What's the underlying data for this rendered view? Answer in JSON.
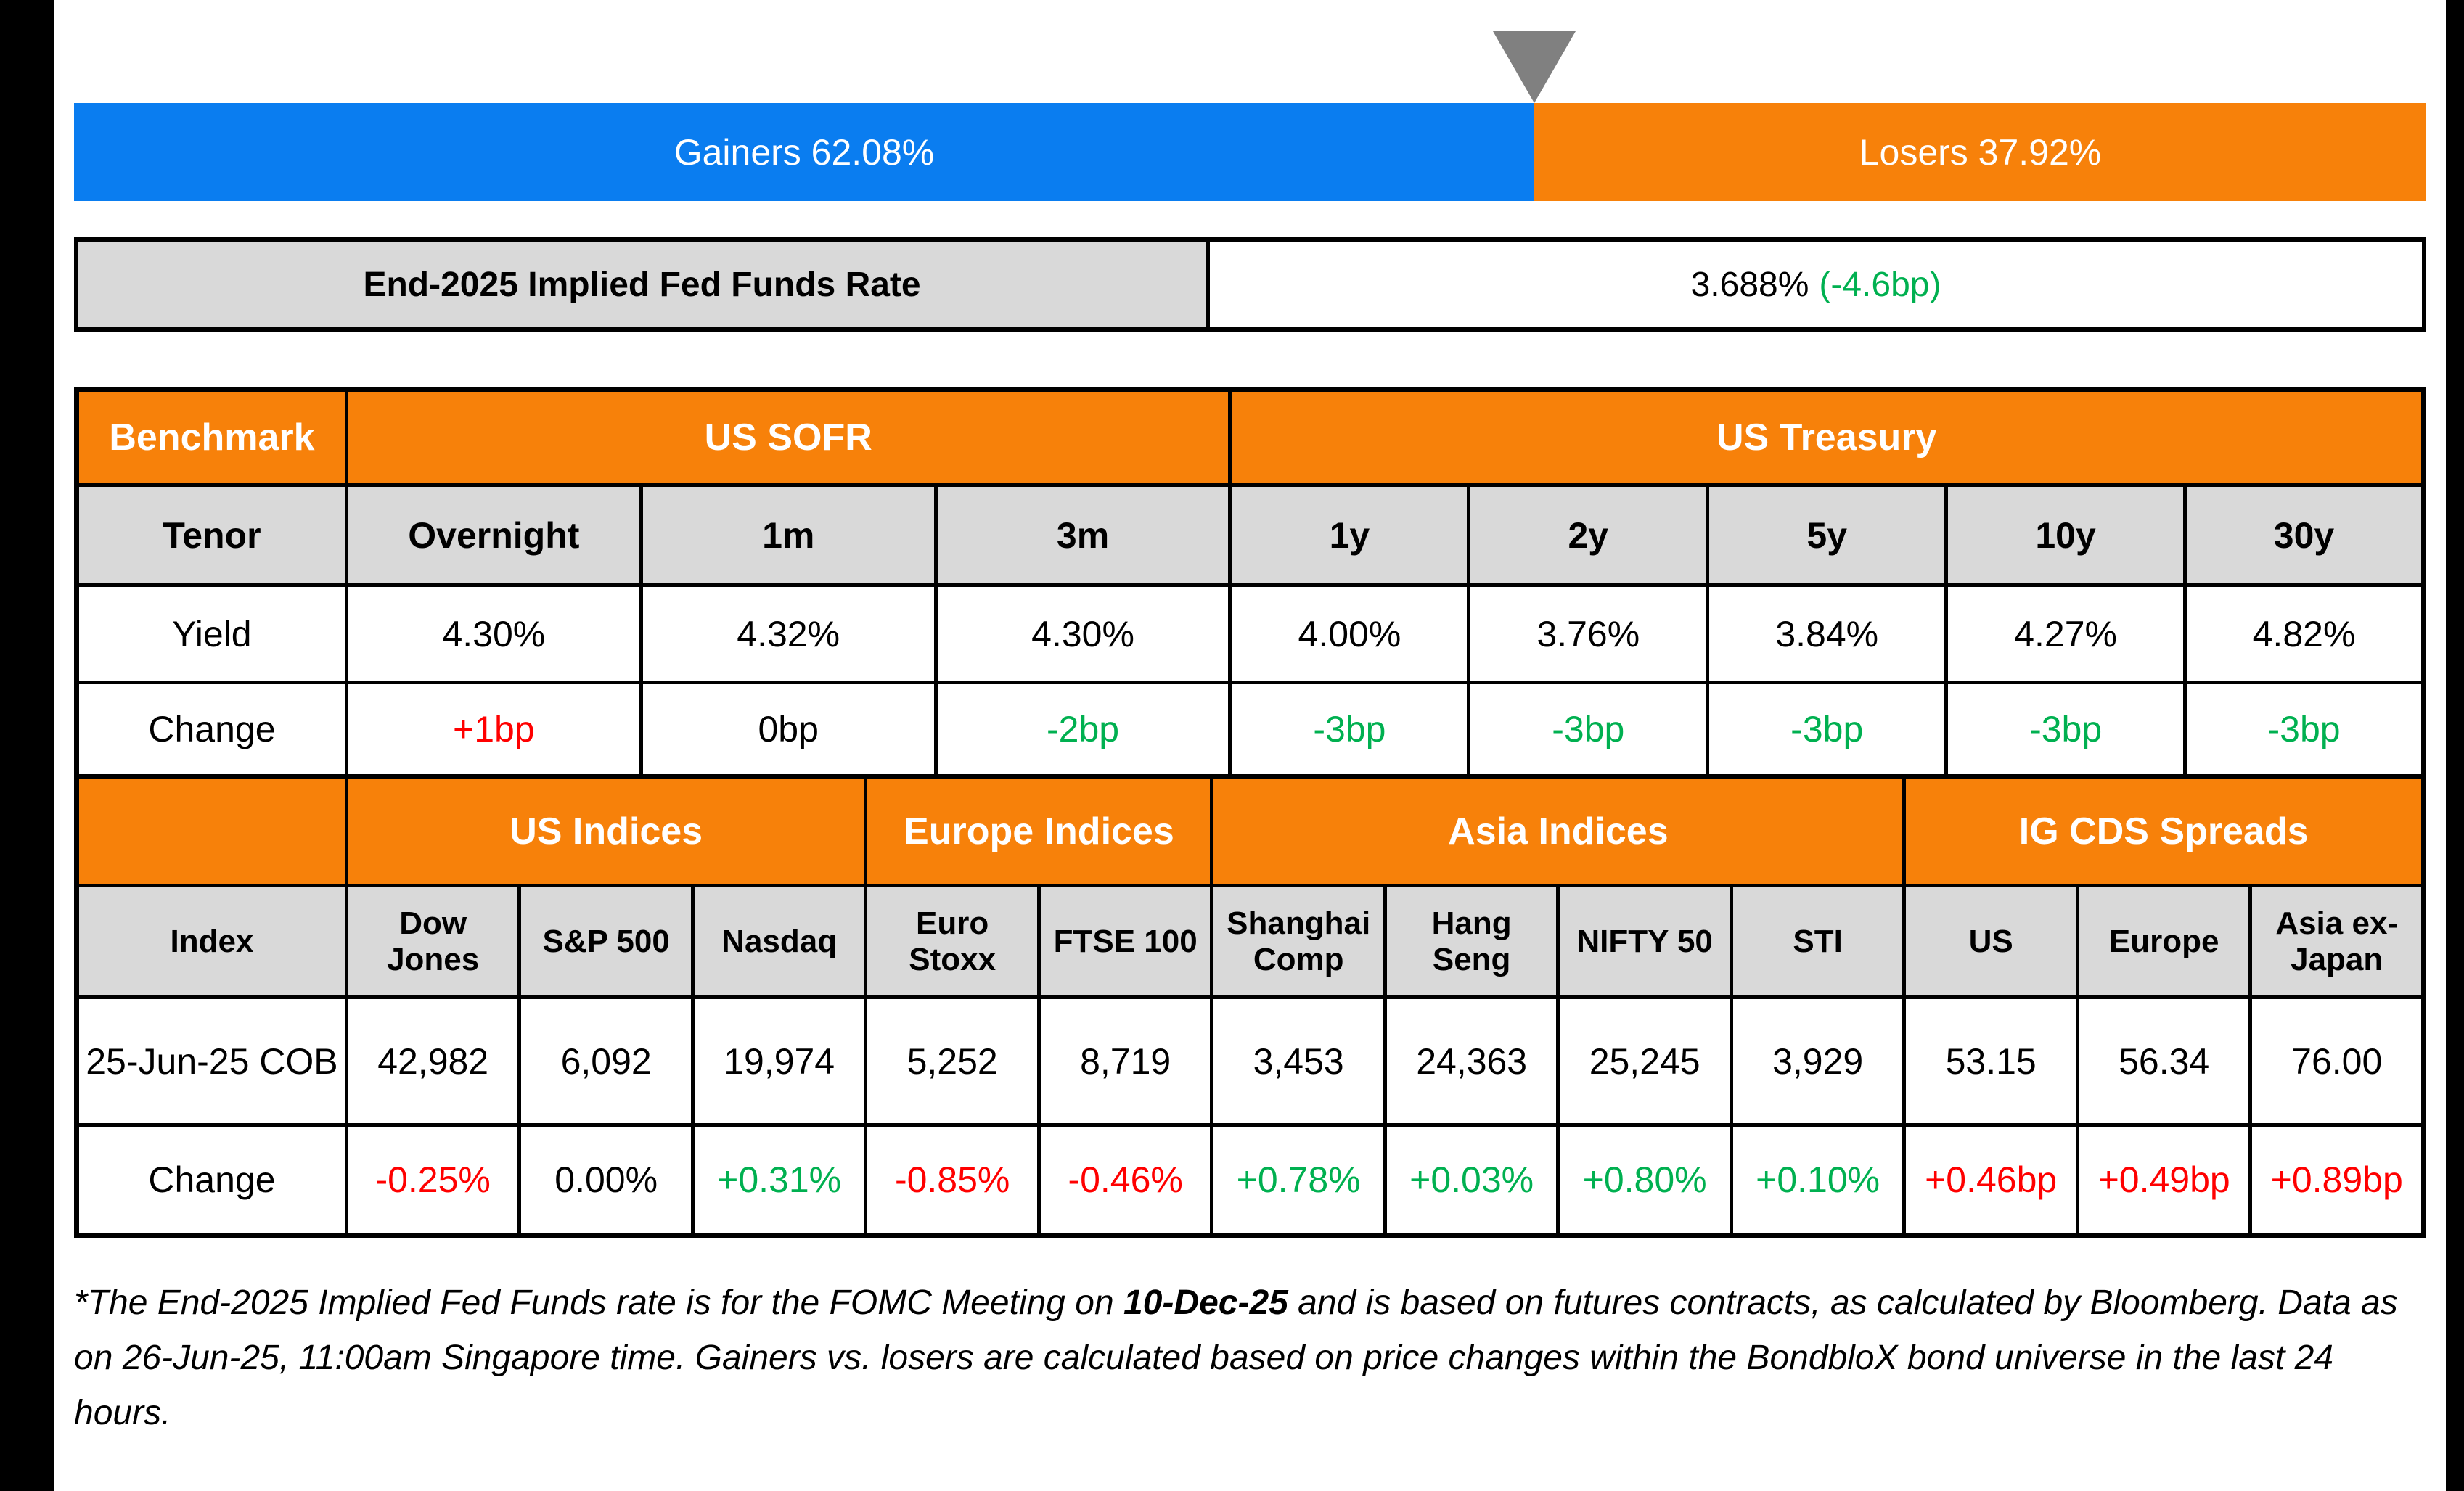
{
  "colors": {
    "gainers_blue": "#0a7df0",
    "losers_orange": "#f7810a",
    "header_orange": "#f7810a",
    "cell_gray": "#d9d9d9",
    "positive_green": "#00b050",
    "negative_red": "#ff0000",
    "marker_gray": "#808080",
    "edge_black": "#000000"
  },
  "gainers_losers": {
    "gainers_label": "Gainers 62.08%",
    "losers_label": "Losers 37.92%",
    "gainers_pct": 62.08,
    "losers_pct": 37.92
  },
  "fed_funds": {
    "label": "End-2025 Implied Fed Funds Rate",
    "value": "3.688%",
    "change": "(-4.6bp)"
  },
  "benchmark_table": {
    "corner_label": "Benchmark",
    "groups": [
      {
        "label": "US SOFR",
        "span": 3
      },
      {
        "label": "US Treasury",
        "span": 5
      }
    ],
    "tenor_label": "Tenor",
    "yield_label": "Yield",
    "change_label": "Change",
    "columns": [
      {
        "tenor": "Overnight",
        "yield": "4.30%",
        "change": "+1bp",
        "change_color": "red"
      },
      {
        "tenor": "1m",
        "yield": "4.32%",
        "change": "0bp",
        "change_color": "black"
      },
      {
        "tenor": "3m",
        "yield": "4.30%",
        "change": "-2bp",
        "change_color": "green"
      },
      {
        "tenor": "1y",
        "yield": "4.00%",
        "change": "-3bp",
        "change_color": "green"
      },
      {
        "tenor": "2y",
        "yield": "3.76%",
        "change": "-3bp",
        "change_color": "green"
      },
      {
        "tenor": "5y",
        "yield": "3.84%",
        "change": "-3bp",
        "change_color": "green"
      },
      {
        "tenor": "10y",
        "yield": "4.27%",
        "change": "-3bp",
        "change_color": "green"
      },
      {
        "tenor": "30y",
        "yield": "4.82%",
        "change": "-3bp",
        "change_color": "green"
      }
    ]
  },
  "indices_table": {
    "corner_label": "",
    "groups": [
      {
        "label": "US Indices",
        "span": 3
      },
      {
        "label": "Europe Indices",
        "span": 2
      },
      {
        "label": "Asia Indices",
        "span": 4
      },
      {
        "label": "IG CDS Spreads",
        "span": 3
      }
    ],
    "index_label": "Index",
    "cob_label": "25-Jun-25 COB",
    "change_label": "Change",
    "columns": [
      {
        "name": "Dow Jones",
        "value": "42,982",
        "change": "-0.25%",
        "change_color": "red"
      },
      {
        "name": "S&P 500",
        "value": "6,092",
        "change": "0.00%",
        "change_color": "black"
      },
      {
        "name": "Nasdaq",
        "value": "19,974",
        "change": "+0.31%",
        "change_color": "green"
      },
      {
        "name": "Euro Stoxx",
        "value": "5,252",
        "change": "-0.85%",
        "change_color": "red"
      },
      {
        "name": "FTSE 100",
        "value": "8,719",
        "change": "-0.46%",
        "change_color": "red"
      },
      {
        "name": "Shanghai Comp",
        "value": "3,453",
        "change": "+0.78%",
        "change_color": "green"
      },
      {
        "name": "Hang Seng",
        "value": "24,363",
        "change": "+0.03%",
        "change_color": "green"
      },
      {
        "name": "NIFTY 50",
        "value": "25,245",
        "change": "+0.80%",
        "change_color": "green"
      },
      {
        "name": "STI",
        "value": "3,929",
        "change": "+0.10%",
        "change_color": "green"
      },
      {
        "name": "US",
        "value": "53.15",
        "change": "+0.46bp",
        "change_color": "red"
      },
      {
        "name": "Europe",
        "value": "56.34",
        "change": "+0.49bp",
        "change_color": "red"
      },
      {
        "name": "Asia ex-Japan",
        "value": "76.00",
        "change": "+0.89bp",
        "change_color": "red"
      }
    ]
  },
  "footnote": {
    "part1": "*The End-2025 Implied Fed Funds rate is for the FOMC Meeting on ",
    "bold": "10-Dec-25",
    "part2": " and is based on futures contracts, as calculated by Bloomberg. Data as on 26-Jun-25, 11:00am Singapore time. Gainers vs. losers are calculated based on price changes within the BondbloX bond universe in the last 24 hours."
  },
  "chart_data": [
    {
      "type": "bar",
      "title": "Gainers vs Losers (BondbloX bond universe, last 24 hours)",
      "orientation": "horizontal-stacked",
      "categories": [
        "Gainers",
        "Losers"
      ],
      "values": [
        62.08,
        37.92
      ],
      "unit": "%",
      "colors": [
        "#0a7df0",
        "#f7810a"
      ],
      "annotations": [
        "Gray triangle marker points at the 62.08% / 37.92% boundary"
      ]
    },
    {
      "type": "table",
      "title": "Benchmark — End-2025 Implied Fed Funds Rate 3.688% (-4.6bp)",
      "column_groups": [
        {
          "label": "US SOFR",
          "columns": [
            "Overnight",
            "1m",
            "3m"
          ]
        },
        {
          "label": "US Treasury",
          "columns": [
            "1y",
            "2y",
            "5y",
            "10y",
            "30y"
          ]
        }
      ],
      "columns": [
        "Overnight",
        "1m",
        "3m",
        "1y",
        "2y",
        "5y",
        "10y",
        "30y"
      ],
      "rows": [
        {
          "label": "Yield",
          "values": [
            "4.30%",
            "4.32%",
            "4.30%",
            "4.00%",
            "3.76%",
            "3.84%",
            "4.27%",
            "4.82%"
          ]
        },
        {
          "label": "Change",
          "values": [
            "+1bp",
            "0bp",
            "-2bp",
            "-3bp",
            "-3bp",
            "-3bp",
            "-3bp",
            "-3bp"
          ]
        }
      ]
    },
    {
      "type": "table",
      "title": "Indices & IG CDS Spreads",
      "column_groups": [
        {
          "label": "US Indices",
          "columns": [
            "Dow Jones",
            "S&P 500",
            "Nasdaq"
          ]
        },
        {
          "label": "Europe Indices",
          "columns": [
            "Euro Stoxx",
            "FTSE 100"
          ]
        },
        {
          "label": "Asia Indices",
          "columns": [
            "Shanghai Comp",
            "Hang Seng",
            "NIFTY 50",
            "STI"
          ]
        },
        {
          "label": "IG CDS Spreads",
          "columns": [
            "US",
            "Europe",
            "Asia ex-Japan"
          ]
        }
      ],
      "columns": [
        "Dow Jones",
        "S&P 500",
        "Nasdaq",
        "Euro Stoxx",
        "FTSE 100",
        "Shanghai Comp",
        "Hang Seng",
        "NIFTY 50",
        "STI",
        "US",
        "Europe",
        "Asia ex-Japan"
      ],
      "rows": [
        {
          "label": "25-Jun-25 COB",
          "values": [
            "42,982",
            "6,092",
            "19,974",
            "5,252",
            "8,719",
            "3,453",
            "24,363",
            "25,245",
            "3,929",
            "53.15",
            "56.34",
            "76.00"
          ]
        },
        {
          "label": "Change",
          "values": [
            "-0.25%",
            "0.00%",
            "+0.31%",
            "-0.85%",
            "-0.46%",
            "+0.78%",
            "+0.03%",
            "+0.80%",
            "+0.10%",
            "+0.46bp",
            "+0.49bp",
            "+0.89bp"
          ]
        }
      ]
    }
  ]
}
